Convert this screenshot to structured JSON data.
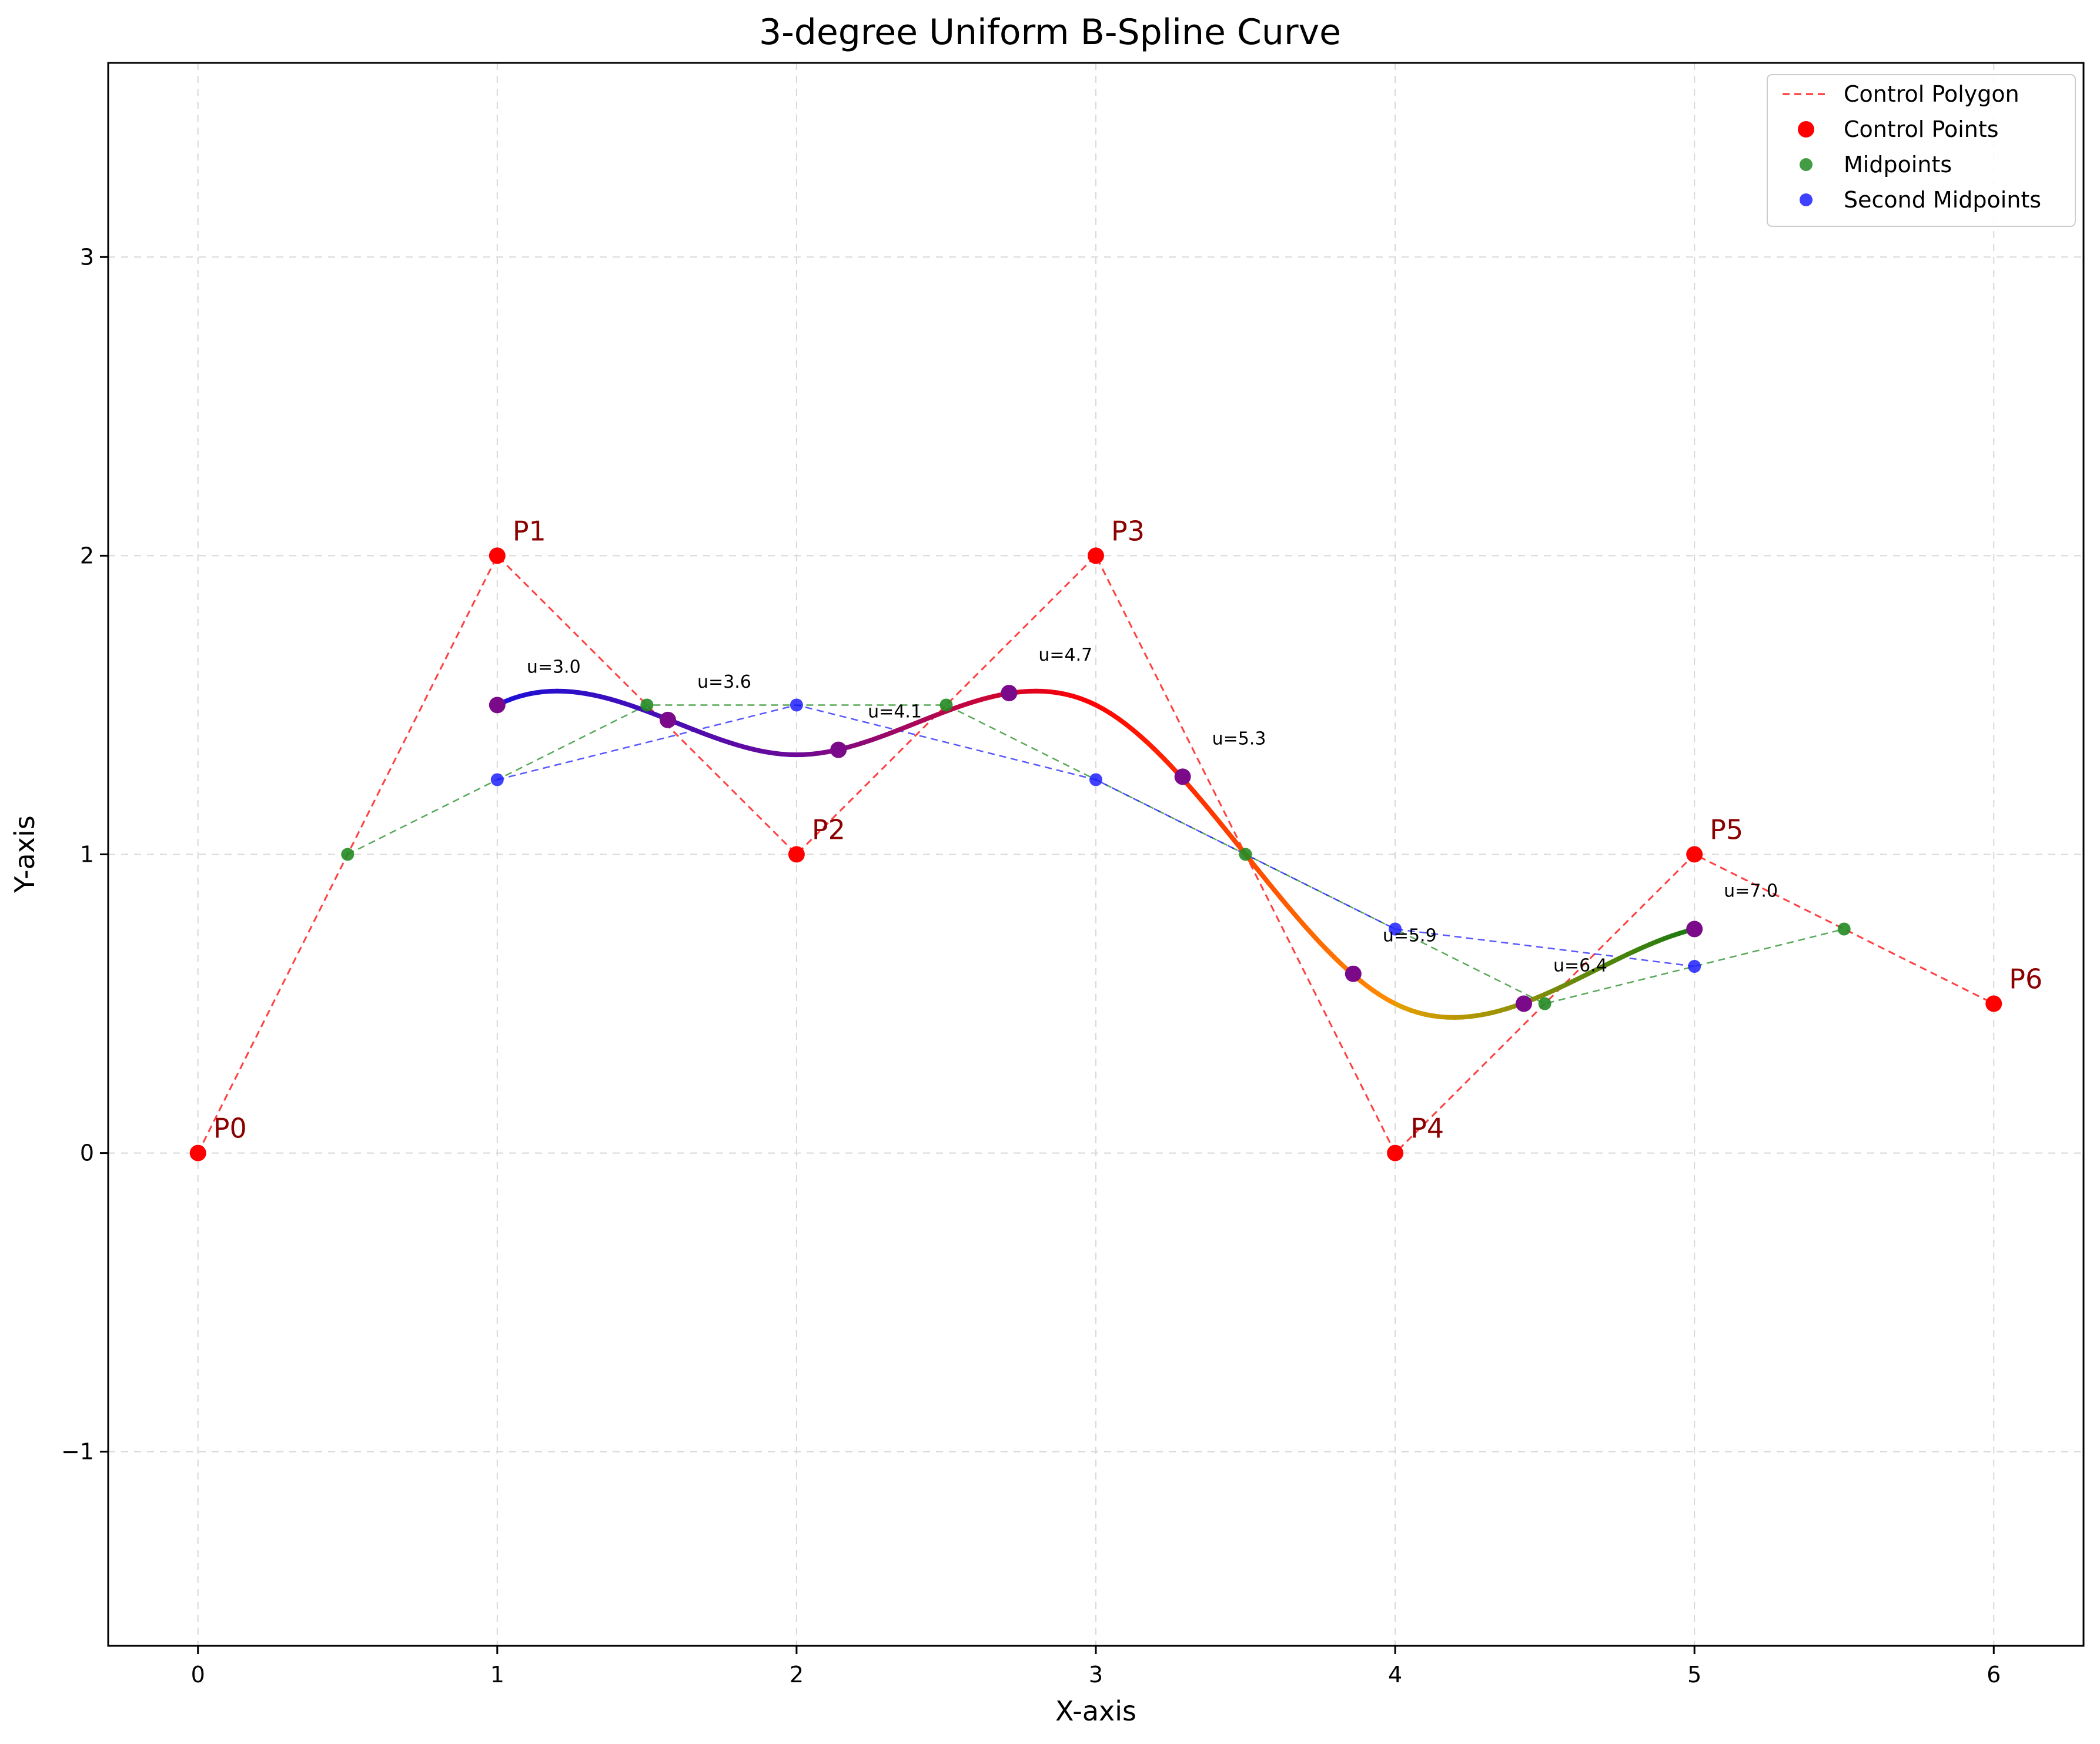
{
  "chart_data": {
    "type": "line",
    "title": "3-degree Uniform B-Spline Curve",
    "xlabel": "X-axis",
    "ylabel": "Y-axis",
    "xlim": [
      -0.3,
      6.3
    ],
    "ylim": [
      -1.65,
      3.65
    ],
    "xticks": [
      0,
      1,
      2,
      3,
      4,
      5,
      6
    ],
    "yticks": [
      -1,
      0,
      1,
      2,
      3
    ],
    "xtick_labels": [
      "0",
      "1",
      "2",
      "3",
      "4",
      "5",
      "6"
    ],
    "ytick_labels": [
      "−1",
      "0",
      "1",
      "2",
      "3"
    ],
    "grid": true,
    "legend_position": "top-right",
    "legend": [
      {
        "label": "Control Polygon",
        "kind": "dashed-line",
        "color": "#ff0000"
      },
      {
        "label": "Control Points",
        "kind": "marker",
        "color": "#ff0000"
      },
      {
        "label": "Midpoints",
        "kind": "marker",
        "color": "#228b22"
      },
      {
        "label": "Second Midpoints",
        "kind": "marker",
        "color": "#1f1fff"
      }
    ],
    "control_points": {
      "labels": [
        "P0",
        "P1",
        "P2",
        "P3",
        "P4",
        "P5",
        "P6"
      ],
      "x": [
        0,
        1,
        2,
        3,
        4,
        5,
        6
      ],
      "y": [
        0,
        2,
        1,
        2,
        0,
        1,
        0.5
      ],
      "color": "#ff0000"
    },
    "midpoints": {
      "x": [
        0.5,
        1.5,
        2.5,
        3.5,
        4.5,
        5.5
      ],
      "y": [
        1,
        1.5,
        1.5,
        1,
        0.5,
        0.75
      ],
      "color": "#228b22"
    },
    "second_midpoints": {
      "x": [
        1,
        2,
        3,
        4,
        5
      ],
      "y": [
        1.25,
        1.5,
        1.25,
        0.75,
        0.625
      ],
      "color": "#1f1fff"
    },
    "curve": {
      "segments": [
        {
          "control": [
            [
              0,
              0
            ],
            [
              1,
              2
            ],
            [
              2,
              1
            ],
            [
              3,
              2
            ]
          ],
          "colors": [
            "#1a10d8",
            "#6a0a9a"
          ]
        },
        {
          "control": [
            [
              1,
              2
            ],
            [
              2,
              1
            ],
            [
              3,
              2
            ],
            [
              4,
              0
            ]
          ],
          "colors": [
            "#6a0a9a",
            "#ff0000"
          ]
        },
        {
          "control": [
            [
              2,
              1
            ],
            [
              3,
              2
            ],
            [
              4,
              0
            ],
            [
              5,
              1
            ]
          ],
          "colors": [
            "#ff0000",
            "#ff8c00"
          ]
        },
        {
          "control": [
            [
              3,
              2
            ],
            [
              4,
              0
            ],
            [
              5,
              1
            ],
            [
              6,
              0.5
            ]
          ],
          "colors": [
            "#e8a000",
            "#1a7a10"
          ]
        }
      ]
    },
    "parameter_points": {
      "labels": [
        "u=3.0",
        "u=3.6",
        "u=4.1",
        "u=4.7",
        "u=5.3",
        "u=5.9",
        "u=6.4",
        "u=7.0"
      ],
      "x": [
        1.0,
        1.57,
        2.14,
        2.71,
        3.29,
        3.86,
        4.43,
        5.0
      ],
      "y": [
        1.5,
        1.45,
        1.35,
        1.54,
        1.26,
        0.6,
        0.5,
        0.75
      ],
      "color": "#7a0a8a"
    }
  }
}
